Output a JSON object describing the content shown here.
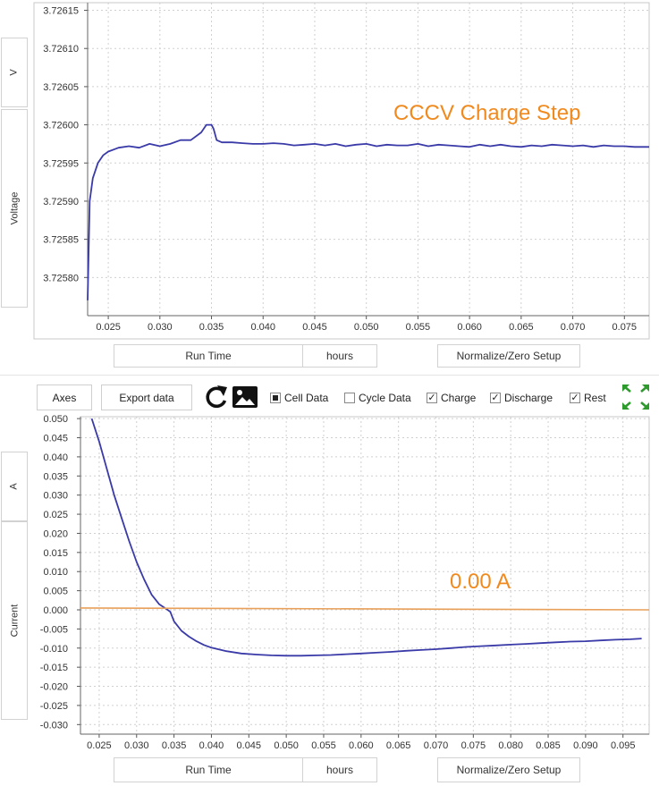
{
  "colors": {
    "series": "#3a3aa8",
    "zero_line": "#e8a05a",
    "annotation": "#f08a1e",
    "fullscreen": "#2e9a2e"
  },
  "voltage_panel": {
    "axis_unit": "V",
    "axis_name": "Voltage",
    "annotation": "CCCV Charge Step",
    "x_axis_button": "Run Time",
    "x_unit_button": "hours",
    "normalize_button": "Normalize/Zero Setup"
  },
  "toolbar": {
    "axes_button": "Axes",
    "export_button": "Export data",
    "refresh_icon": "refresh-icon",
    "image_icon": "image-icon",
    "checkboxes": [
      {
        "label": "Cell Data",
        "state": "filled"
      },
      {
        "label": "Cycle Data",
        "state": "unchecked"
      },
      {
        "label": "Charge",
        "state": "checked"
      },
      {
        "label": "Discharge",
        "state": "checked"
      },
      {
        "label": "Rest",
        "state": "checked"
      }
    ],
    "fullscreen_icon": "expand-arrows-icon"
  },
  "current_panel": {
    "axis_unit": "A",
    "axis_name": "Current",
    "annotation": "0.00 A",
    "x_axis_button": "Run Time",
    "x_unit_button": "hours",
    "normalize_button": "Normalize/Zero Setup"
  },
  "chart_data": [
    {
      "type": "line",
      "title": "",
      "xlabel": "Run Time",
      "ylabel": "Voltage",
      "xlim": [
        0.023,
        0.0774
      ],
      "ylim": [
        3.72575,
        3.72616
      ],
      "x_ticks": [
        "0.025",
        "0.030",
        "0.035",
        "0.040",
        "0.045",
        "0.050",
        "0.055",
        "0.060",
        "0.065",
        "0.070",
        "0.075"
      ],
      "y_ticks": [
        "3.72615",
        "3.72610",
        "3.72605",
        "3.72600",
        "3.72595",
        "3.72590",
        "3.72585",
        "3.72580"
      ],
      "grid": true,
      "series": [
        {
          "x": [
            0.023,
            0.0232,
            0.0235,
            0.024,
            0.0245,
            0.025,
            0.026,
            0.027,
            0.028,
            0.029,
            0.03,
            0.031,
            0.032,
            0.033,
            0.034,
            0.0345,
            0.0348,
            0.035,
            0.0352,
            0.0355,
            0.036,
            0.037,
            0.038,
            0.039,
            0.04,
            0.041,
            0.042,
            0.043,
            0.044,
            0.045,
            0.046,
            0.047,
            0.048,
            0.049,
            0.05,
            0.051,
            0.052,
            0.053,
            0.054,
            0.055,
            0.056,
            0.057,
            0.058,
            0.059,
            0.06,
            0.061,
            0.062,
            0.063,
            0.064,
            0.065,
            0.066,
            0.067,
            0.068,
            0.069,
            0.07,
            0.071,
            0.072,
            0.073,
            0.074,
            0.075,
            0.076,
            0.0774
          ],
          "y": [
            3.72577,
            3.7259,
            3.72593,
            3.72595,
            3.72596,
            3.725965,
            3.72597,
            3.725972,
            3.72597,
            3.725975,
            3.725972,
            3.725975,
            3.72598,
            3.72598,
            3.72599,
            3.726,
            3.726,
            3.726,
            3.725995,
            3.72598,
            3.725977,
            3.725977,
            3.725976,
            3.725975,
            3.725975,
            3.725976,
            3.725975,
            3.725973,
            3.725974,
            3.725975,
            3.725973,
            3.725975,
            3.725972,
            3.725974,
            3.725975,
            3.725972,
            3.725974,
            3.725973,
            3.725973,
            3.725975,
            3.725972,
            3.725974,
            3.725973,
            3.725972,
            3.725971,
            3.725974,
            3.725972,
            3.725974,
            3.725972,
            3.725971,
            3.725973,
            3.725972,
            3.725974,
            3.725973,
            3.725972,
            3.725973,
            3.725971,
            3.725973,
            3.725972,
            3.725972,
            3.725971,
            3.725971
          ]
        }
      ]
    },
    {
      "type": "line",
      "title": "",
      "xlabel": "Run Time",
      "ylabel": "Current",
      "xlim": [
        0.0225,
        0.0985
      ],
      "ylim": [
        -0.0325,
        0.0505
      ],
      "x_ticks": [
        "0.025",
        "0.030",
        "0.035",
        "0.040",
        "0.045",
        "0.050",
        "0.055",
        "0.060",
        "0.065",
        "0.070",
        "0.075",
        "0.080",
        "0.085",
        "0.090",
        "0.095"
      ],
      "y_ticks": [
        "0.050",
        "0.045",
        "0.040",
        "0.035",
        "0.030",
        "0.025",
        "0.020",
        "0.015",
        "0.010",
        "0.005",
        "0.000",
        "-0.005",
        "-0.010",
        "-0.015",
        "-0.020",
        "-0.025",
        "-0.030"
      ],
      "grid": true,
      "series": [
        {
          "x": [
            0.024,
            0.025,
            0.026,
            0.027,
            0.028,
            0.029,
            0.03,
            0.031,
            0.032,
            0.033,
            0.034,
            0.0345,
            0.035,
            0.036,
            0.037,
            0.038,
            0.039,
            0.04,
            0.042,
            0.044,
            0.046,
            0.048,
            0.05,
            0.052,
            0.054,
            0.056,
            0.058,
            0.06,
            0.062,
            0.064,
            0.066,
            0.068,
            0.07,
            0.072,
            0.074,
            0.076,
            0.078,
            0.08,
            0.082,
            0.084,
            0.086,
            0.088,
            0.09,
            0.092,
            0.094,
            0.096,
            0.0975
          ],
          "y": [
            0.05,
            0.044,
            0.037,
            0.03,
            0.024,
            0.018,
            0.0125,
            0.008,
            0.004,
            0.0015,
            0.0002,
            -0.0005,
            -0.003,
            -0.0055,
            -0.007,
            -0.0082,
            -0.0092,
            -0.0099,
            -0.0108,
            -0.0114,
            -0.0117,
            -0.0119,
            -0.012,
            -0.012,
            -0.0119,
            -0.0118,
            -0.0116,
            -0.0114,
            -0.0112,
            -0.011,
            -0.0107,
            -0.0105,
            -0.0103,
            -0.01,
            -0.0097,
            -0.0095,
            -0.0093,
            -0.0091,
            -0.0089,
            -0.0087,
            -0.0085,
            -0.0083,
            -0.0082,
            -0.008,
            -0.0078,
            -0.0077,
            -0.0075
          ]
        },
        {
          "x": [
            0.0225,
            0.0985
          ],
          "y": [
            0.0005,
            0.0
          ]
        }
      ]
    }
  ]
}
